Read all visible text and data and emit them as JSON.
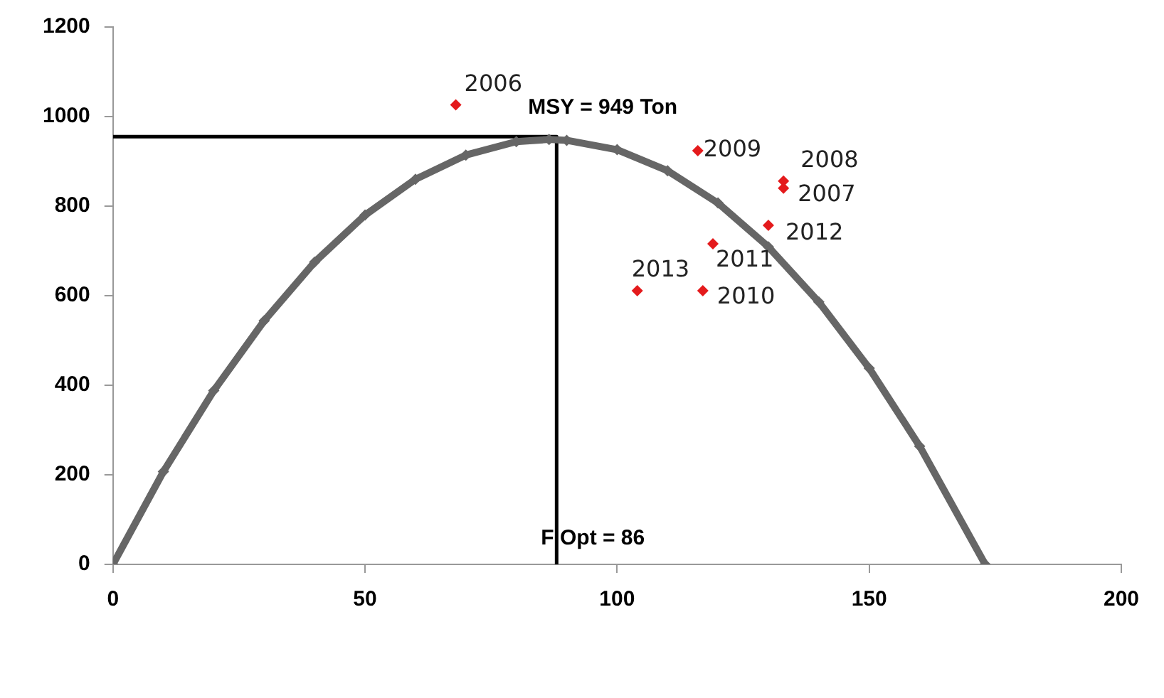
{
  "chart_data": {
    "type": "scatter",
    "xlim": [
      0,
      200
    ],
    "xticks": [
      0,
      50,
      100,
      150,
      200
    ],
    "ylim": [
      0,
      1200
    ],
    "yticks": [
      0,
      200,
      400,
      600,
      800,
      1000,
      1200
    ],
    "grid": false,
    "legend": false,
    "series": [
      {
        "type": "line",
        "color": "#666666",
        "marker": "diamond",
        "x": [
          0,
          10,
          20,
          30,
          40,
          50,
          60,
          70,
          80,
          86.5,
          90,
          100,
          110,
          120,
          130,
          140,
          150,
          160,
          173
        ],
        "values": [
          0,
          207,
          388,
          544,
          675,
          780,
          860,
          914,
          944,
          949,
          947,
          926,
          879,
          807,
          709,
          586,
          438,
          264,
          0
        ]
      },
      {
        "type": "line",
        "color": "#000000",
        "marker": "none",
        "x": [
          0,
          88,
          88
        ],
        "values": [
          955,
          955,
          0
        ]
      },
      {
        "type": "scatter",
        "color": "#e41a1c",
        "marker": "diamond",
        "x": [
          68,
          133,
          133,
          116,
          117,
          119,
          130,
          104
        ],
        "values": [
          1026,
          840,
          856,
          924,
          611,
          716,
          757,
          611
        ]
      }
    ],
    "annotations": [
      {
        "text": "MSY = 949 Ton",
        "x": 88,
        "y": 955
      },
      {
        "text": "F Opt = 86",
        "x": 88,
        "y": 0
      },
      {
        "text": "2006",
        "x": 68,
        "y": 1026
      },
      {
        "text": "2007",
        "x": 133,
        "y": 840
      },
      {
        "text": "2008",
        "x": 133,
        "y": 856
      },
      {
        "text": "2009",
        "x": 116,
        "y": 924
      },
      {
        "text": "2010",
        "x": 117,
        "y": 611
      },
      {
        "text": "2011",
        "x": 119,
        "y": 716
      },
      {
        "text": "2012",
        "x": 130,
        "y": 757
      },
      {
        "text": "2013",
        "x": 104,
        "y": 611
      }
    ]
  }
}
